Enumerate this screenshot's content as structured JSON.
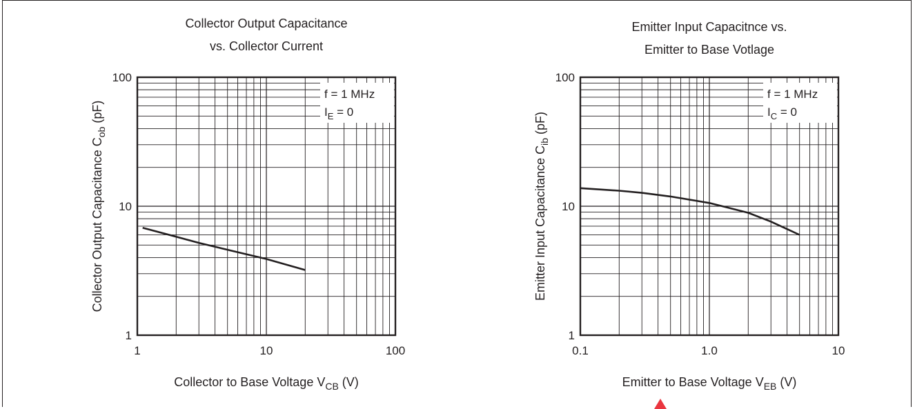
{
  "colors": {
    "ink": "#231f20",
    "grid": "#231f20",
    "watermark": "#e8202a"
  },
  "chart_data": [
    {
      "type": "line",
      "title": [
        "Collector Output Capacitance",
        "vs. Collector Current"
      ],
      "xlabel": {
        "main": "Collector to Base Voltage  V",
        "sub": "CB",
        "unit": "  (V)"
      },
      "ylabel": {
        "main": "Collector Output Capacitance  C",
        "sub": "ob",
        "unit": "  (pF)"
      },
      "x_scale": "log",
      "y_scale": "log",
      "xlim": [
        1,
        100
      ],
      "ylim": [
        1,
        100
      ],
      "x_ticks": [
        {
          "value": 1,
          "label": "1"
        },
        {
          "value": 10,
          "label": "10"
        },
        {
          "value": 100,
          "label": "100"
        }
      ],
      "y_ticks": [
        {
          "value": 1,
          "label": "1"
        },
        {
          "value": 10,
          "label": "10"
        },
        {
          "value": 100,
          "label": "100"
        }
      ],
      "grid": true,
      "annotations": [
        {
          "main": "f = 1 MHz",
          "sub": "",
          "tail": ""
        },
        {
          "main": "I",
          "sub": "E",
          "tail": " = 0"
        }
      ],
      "series": [
        {
          "x": [
            1.1,
            2,
            3,
            5,
            10,
            20
          ],
          "y": [
            6.8,
            5.8,
            5.2,
            4.6,
            3.9,
            3.2
          ]
        }
      ]
    },
    {
      "type": "line",
      "title": [
        "Emitter Input Capacitnce vs.",
        "Emitter to Base Votlage"
      ],
      "xlabel": {
        "main": "Emitter to Base Voltage  V",
        "sub": "EB",
        "unit": "  (V)"
      },
      "ylabel": {
        "main": "Emitter Input Capacitance  C",
        "sub": "ib",
        "unit": "  (pF)"
      },
      "x_scale": "log",
      "y_scale": "log",
      "xlim": [
        0.1,
        10
      ],
      "ylim": [
        1,
        100
      ],
      "x_ticks": [
        {
          "value": 0.1,
          "label": "0.1"
        },
        {
          "value": 1,
          "label": "1.0"
        },
        {
          "value": 10,
          "label": "10"
        }
      ],
      "y_ticks": [
        {
          "value": 1,
          "label": "1"
        },
        {
          "value": 10,
          "label": "10"
        },
        {
          "value": 100,
          "label": "100"
        }
      ],
      "grid": true,
      "annotations": [
        {
          "main": "f = 1 MHz",
          "sub": "",
          "tail": ""
        },
        {
          "main": "I",
          "sub": "C",
          "tail": " = 0"
        }
      ],
      "series": [
        {
          "x": [
            0.1,
            0.2,
            0.3,
            0.5,
            1.0,
            2.0,
            3.0,
            5.0
          ],
          "y": [
            13.8,
            13.2,
            12.7,
            11.9,
            10.6,
            8.9,
            7.6,
            6.0
          ]
        }
      ]
    }
  ]
}
